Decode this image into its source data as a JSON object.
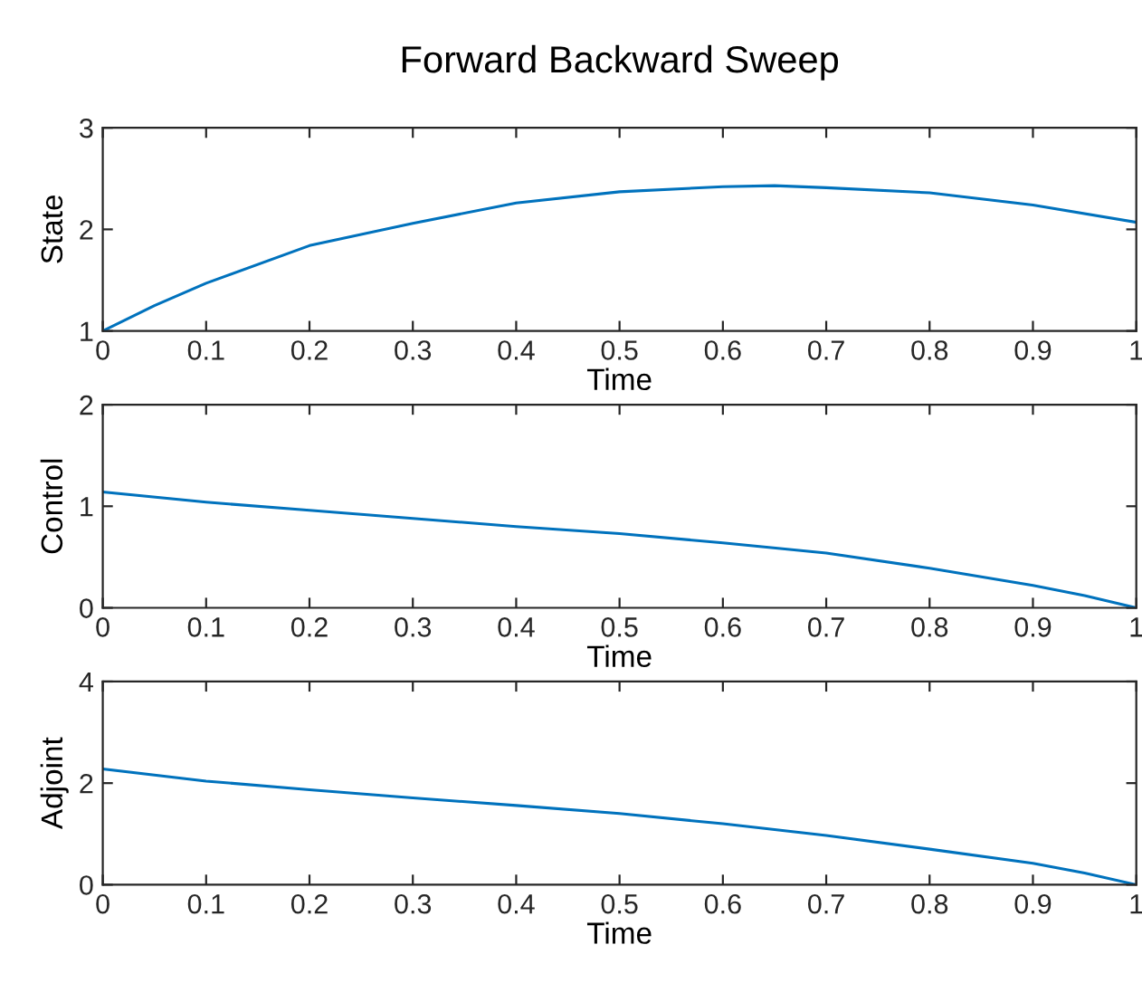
{
  "chart_data": [
    {
      "type": "line",
      "title": "Forward Backward Sweep",
      "xlabel": "Time",
      "ylabel": "State",
      "xlim": [
        0,
        1
      ],
      "ylim": [
        1,
        3
      ],
      "xticks": [
        0,
        0.1,
        0.2,
        0.3,
        0.4,
        0.5,
        0.6,
        0.7,
        0.8,
        0.9,
        1
      ],
      "yticks": [
        1,
        2,
        3
      ],
      "grid": false,
      "legend": false,
      "series": [
        {
          "color": "#0072bd",
          "x": [
            0,
            0.05,
            0.1,
            0.2,
            0.3,
            0.4,
            0.5,
            0.6,
            0.65,
            0.7,
            0.8,
            0.9,
            1
          ],
          "values": [
            1.0,
            1.25,
            1.47,
            1.84,
            2.06,
            2.26,
            2.37,
            2.42,
            2.43,
            2.41,
            2.36,
            2.24,
            2.07
          ]
        }
      ]
    },
    {
      "type": "line",
      "xlabel": "Time",
      "ylabel": "Control",
      "xlim": [
        0,
        1
      ],
      "ylim": [
        0,
        2
      ],
      "xticks": [
        0,
        0.1,
        0.2,
        0.3,
        0.4,
        0.5,
        0.6,
        0.7,
        0.8,
        0.9,
        1
      ],
      "yticks": [
        0,
        1,
        2
      ],
      "grid": false,
      "legend": false,
      "series": [
        {
          "color": "#0072bd",
          "x": [
            0,
            0.1,
            0.2,
            0.3,
            0.4,
            0.5,
            0.6,
            0.7,
            0.8,
            0.9,
            0.95,
            1
          ],
          "values": [
            1.14,
            1.04,
            0.96,
            0.88,
            0.8,
            0.73,
            0.64,
            0.54,
            0.39,
            0.22,
            0.12,
            0.0
          ]
        }
      ]
    },
    {
      "type": "line",
      "xlabel": "Time",
      "ylabel": "Adjoint",
      "xlim": [
        0,
        1
      ],
      "ylim": [
        0,
        4
      ],
      "xticks": [
        0,
        0.1,
        0.2,
        0.3,
        0.4,
        0.5,
        0.6,
        0.7,
        0.8,
        0.9,
        1
      ],
      "yticks": [
        0,
        2,
        4
      ],
      "grid": false,
      "legend": false,
      "series": [
        {
          "color": "#0072bd",
          "x": [
            0,
            0.1,
            0.2,
            0.3,
            0.4,
            0.5,
            0.6,
            0.7,
            0.8,
            0.9,
            0.95,
            1
          ],
          "values": [
            2.28,
            2.04,
            1.87,
            1.71,
            1.56,
            1.4,
            1.2,
            0.97,
            0.7,
            0.42,
            0.23,
            0.0
          ]
        }
      ]
    }
  ]
}
